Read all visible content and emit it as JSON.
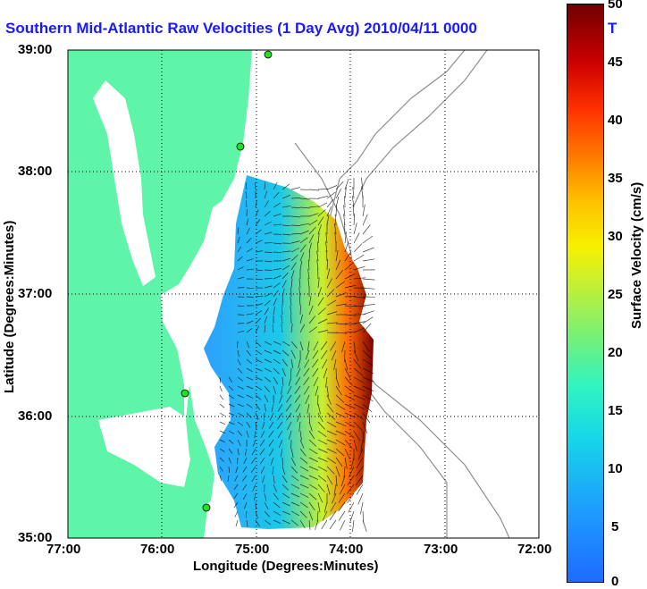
{
  "title": "Southern Mid-Atlantic Raw Velocities (1 Day Avg) 2010/04/11 0000",
  "title_tail": "T",
  "xlabel": "Longitude (Degrees:Minutes)",
  "ylabel": "Latitude (Degrees:Minutes)",
  "x_ticks": [
    "77:00",
    "76:00",
    "75:00",
    "74:00",
    "73:00",
    "72:00"
  ],
  "y_ticks": [
    "39:00",
    "38:00",
    "37:00",
    "36:00",
    "35:00"
  ],
  "colorbar": {
    "label": "Surface Velocity (cm/s)",
    "ticks": [
      "50",
      "45",
      "40",
      "35",
      "30",
      "25",
      "20",
      "15",
      "10",
      "5",
      "0"
    ],
    "range": [
      0,
      50
    ]
  },
  "colors": {
    "land": "#5ff5a8",
    "title": "#1a1aff",
    "station": "#22e022"
  }
}
